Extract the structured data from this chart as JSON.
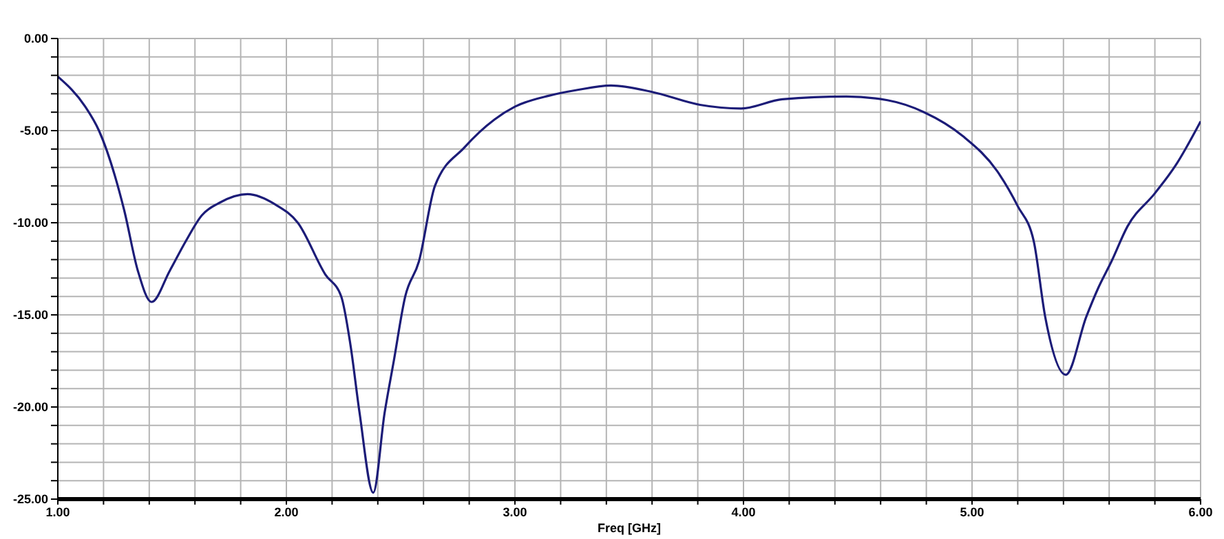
{
  "chart_data": {
    "type": "line",
    "xlabel": "Freq [GHz]",
    "x": [
      1.0,
      1.12,
      1.18,
      1.29,
      1.35,
      1.41,
      1.49,
      1.56,
      1.63,
      1.71,
      1.83,
      1.95,
      2.05,
      2.17,
      2.24,
      2.28,
      2.32,
      2.38,
      2.43,
      2.47,
      2.52,
      2.58,
      2.65,
      2.78,
      2.91,
      3.0,
      3.15,
      3.27,
      3.42,
      3.6,
      3.81,
      3.99,
      4.17,
      4.45,
      4.63,
      4.79,
      4.96,
      5.11,
      5.2,
      5.27,
      5.32,
      5.41,
      5.5,
      5.55,
      5.61,
      5.68,
      5.8,
      5.89,
      6.0
    ],
    "series": [
      {
        "color": "#1c1c78",
        "values": [
          -2.07,
          -3.7,
          -5.0,
          -9.3,
          -12.6,
          -14.3,
          -12.6,
          -11.0,
          -9.6,
          -8.9,
          -8.45,
          -9.0,
          -10.0,
          -12.8,
          -14.0,
          -16.6,
          -20.3,
          -24.65,
          -20.3,
          -17.5,
          -14.0,
          -12.1,
          -8.0,
          -5.9,
          -4.4,
          -3.7,
          -3.1,
          -2.8,
          -2.55,
          -2.9,
          -3.6,
          -3.8,
          -3.3,
          -3.15,
          -3.35,
          -4.0,
          -5.3,
          -7.2,
          -9.1,
          -11.0,
          -15.1,
          -18.25,
          -15.1,
          -13.6,
          -12.1,
          -10.2,
          -8.4,
          -6.9,
          -4.5
        ]
      }
    ],
    "xlim": [
      1,
      6
    ],
    "xticks": [
      {
        "value": 1,
        "label": "1.00"
      },
      {
        "value": 1.2,
        "label": null
      },
      {
        "value": 1.4,
        "label": null
      },
      {
        "value": 1.6,
        "label": null
      },
      {
        "value": 1.8,
        "label": null
      },
      {
        "value": 2,
        "label": "2.00"
      },
      {
        "value": 2.2,
        "label": null
      },
      {
        "value": 2.4,
        "label": null
      },
      {
        "value": 2.6,
        "label": null
      },
      {
        "value": 2.8,
        "label": null
      },
      {
        "value": 3,
        "label": "3.00"
      },
      {
        "value": 3.2,
        "label": null
      },
      {
        "value": 3.4,
        "label": null
      },
      {
        "value": 3.6,
        "label": null
      },
      {
        "value": 3.8,
        "label": null
      },
      {
        "value": 4,
        "label": "4.00"
      },
      {
        "value": 4.2,
        "label": null
      },
      {
        "value": 4.4,
        "label": null
      },
      {
        "value": 4.6,
        "label": null
      },
      {
        "value": 4.8,
        "label": null
      },
      {
        "value": 5,
        "label": "5.00"
      },
      {
        "value": 5.2,
        "label": null
      },
      {
        "value": 5.4,
        "label": null
      },
      {
        "value": 5.6,
        "label": null
      },
      {
        "value": 5.8,
        "label": null
      },
      {
        "value": 6,
        "label": "6.00"
      }
    ],
    "ylim": [
      -25,
      0
    ],
    "yticks": [
      {
        "value": -25,
        "label": "-25.00"
      },
      {
        "value": -24,
        "label": null
      },
      {
        "value": -23,
        "label": null
      },
      {
        "value": -22,
        "label": null
      },
      {
        "value": -21,
        "label": null
      },
      {
        "value": -20,
        "label": "-20.00"
      },
      {
        "value": -19,
        "label": null
      },
      {
        "value": -18,
        "label": null
      },
      {
        "value": -17,
        "label": null
      },
      {
        "value": -16,
        "label": null
      },
      {
        "value": -15,
        "label": "-15.00"
      },
      {
        "value": -14,
        "label": null
      },
      {
        "value": -13,
        "label": null
      },
      {
        "value": -12,
        "label": null
      },
      {
        "value": -11,
        "label": null
      },
      {
        "value": -10,
        "label": "-10.00"
      },
      {
        "value": -9,
        "label": null
      },
      {
        "value": -8,
        "label": null
      },
      {
        "value": -7,
        "label": null
      },
      {
        "value": -6,
        "label": null
      },
      {
        "value": -5,
        "label": "-5.00"
      },
      {
        "value": -4,
        "label": null
      },
      {
        "value": -3,
        "label": null
      },
      {
        "value": -2,
        "label": null
      },
      {
        "value": -1,
        "label": null
      },
      {
        "value": 0,
        "label": "0.00"
      }
    ],
    "grid": true
  }
}
